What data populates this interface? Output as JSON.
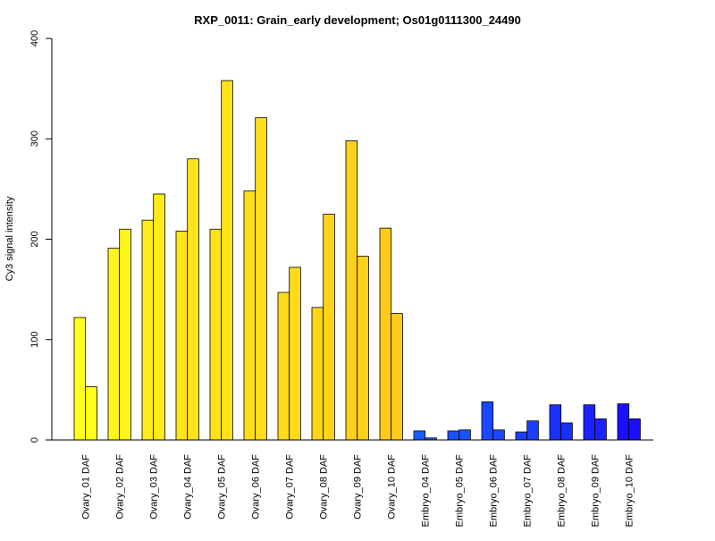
{
  "chart_data": {
    "type": "bar",
    "title": "RXP_0011: Grain_early development; Os01g0111300_24490",
    "xlabel": "",
    "ylabel": "Cy3 signal intensity",
    "ylim": [
      0,
      400
    ],
    "yticks": [
      0,
      100,
      200,
      300,
      400
    ],
    "bars_per_category": 2,
    "categories": [
      "Ovary_01 DAF",
      "Ovary_02 DAF",
      "Ovary_03 DAF",
      "Ovary_04 DAF",
      "Ovary_05 DAF",
      "Ovary_06 DAF",
      "Ovary_07 DAF",
      "Ovary_08 DAF",
      "Ovary_09 DAF",
      "Ovary_10 DAF",
      "Embryo_04 DAF",
      "Embryo_05 DAF",
      "Embryo_06 DAF",
      "Embryo_07 DAF",
      "Embryo_08 DAF",
      "Embryo_09 DAF",
      "Embryo_10 DAF"
    ],
    "series": [
      {
        "values": [
          122,
          191,
          219,
          208,
          210,
          248,
          147,
          132,
          298,
          211,
          9,
          9,
          38,
          8,
          35,
          35,
          36
        ]
      },
      {
        "values": [
          53,
          210,
          245,
          280,
          358,
          321,
          172,
          225,
          183,
          126,
          2,
          10,
          10,
          19,
          17,
          21,
          21
        ]
      }
    ],
    "colors": [
      "#FFFF1A",
      "#FFF51A",
      "#FFEB1A",
      "#FFE51A",
      "#FFE21A",
      "#FFDF1A",
      "#FFDA1A",
      "#FFD51A",
      "#FFD01A",
      "#FFCB1A",
      "#1A5CFF",
      "#1A52FF",
      "#1A48FF",
      "#1A3EFF",
      "#1A30FF",
      "#1A22FF",
      "#1A10FF"
    ],
    "grid": false,
    "legend": "none"
  }
}
